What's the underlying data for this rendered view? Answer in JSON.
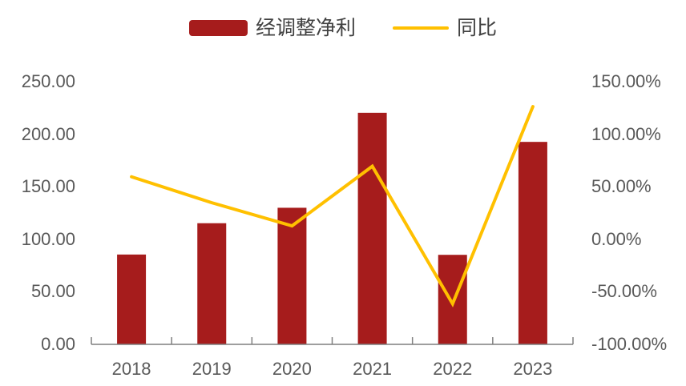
{
  "chart_data": {
    "type": "combo",
    "categories": [
      "2018",
      "2019",
      "2020",
      "2021",
      "2022",
      "2023"
    ],
    "series": [
      {
        "name": "经调整净利",
        "type": "bar",
        "axis": "left",
        "color": "#A61C1C",
        "values": [
          85.5,
          115.3,
          130.0,
          220.4,
          85.2,
          192.7
        ]
      },
      {
        "name": "同比",
        "type": "line",
        "axis": "right",
        "color": "#FFC000",
        "values": [
          59.5,
          34.8,
          12.8,
          69.5,
          -61.4,
          126.3
        ]
      }
    ],
    "left_axis": {
      "min": 0,
      "max": 250,
      "step": 50,
      "tick_labels": [
        "0.00",
        "50.00",
        "100.00",
        "150.00",
        "200.00",
        "250.00"
      ]
    },
    "right_axis": {
      "min": -100,
      "max": 150,
      "step": 50,
      "tick_labels": [
        "-100.00%",
        "-50.00%",
        "0.00%",
        "50.00%",
        "100.00%",
        "150.00%"
      ]
    },
    "title": "",
    "xlabel": "",
    "ylabel": "",
    "grid": false,
    "legend_position": "top",
    "colors": {
      "bar": "#A61C1C",
      "line": "#FFC000",
      "axis_line": "#7F7F7F",
      "tick_text": "#595959",
      "legend_text": "#404040",
      "background": "#FFFFFF"
    }
  }
}
